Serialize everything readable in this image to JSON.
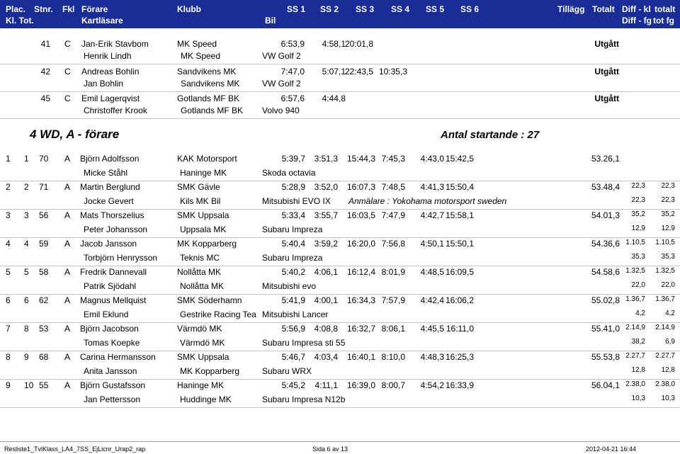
{
  "header": {
    "row1": [
      "Plac.",
      "Stnr.",
      "Fkl",
      "Förare",
      "Klubb",
      "SS 1",
      "SS 2",
      "SS 3",
      "SS 4",
      "SS 5",
      "SS 6",
      "Tillägg",
      "Totalt",
      "Diff - kl",
      "totalt"
    ],
    "row2": [
      "Kl. Tot.",
      "Kartläsare",
      "Bil",
      "Diff - fg",
      "tot fg"
    ]
  },
  "dnf": [
    {
      "nr": "41",
      "fkl": "C",
      "driver": "Jan-Erik Stavbom",
      "club": "MK Speed",
      "ss": [
        "6:53,9",
        "4:58,1",
        "20:01,8",
        "",
        ""
      ],
      "status": "Utgått",
      "codriver": "Henrik Lindh",
      "club2": "MK Speed",
      "car": "VW Golf 2"
    },
    {
      "nr": "42",
      "fkl": "C",
      "driver": "Andreas Bohlin",
      "club": "Sandvikens MK",
      "ss": [
        "7:47,0",
        "5:07,1",
        "22:43,5",
        "10:35,3",
        ""
      ],
      "status": "Utgått",
      "codriver": "Jan Bohlin",
      "club2": "Sandvikens MK",
      "car": "VW Golf 2"
    },
    {
      "nr": "45",
      "fkl": "C",
      "driver": "Emil Lagerqvist",
      "club": "Gotlands MF BK",
      "ss": [
        "6:57,6",
        "4:44,8",
        "",
        "",
        ""
      ],
      "status": "Utgått",
      "codriver": "Christoffer Krook",
      "club2": "Gotlands MF BK",
      "car": "Volvo 940"
    }
  ],
  "section": {
    "title": "4 WD, A - förare",
    "starters": "Antal startande : 27"
  },
  "results": [
    {
      "kl": "1",
      "tot": "1",
      "nr": "70",
      "fkl": "A",
      "driver": "Björn Adolfsson",
      "club": "KAK Motorsport",
      "ss": [
        "5:39,7",
        "3:51,3",
        "15:44,3",
        "7:45,3",
        "4:43,0",
        "15:42,5"
      ],
      "total": "53.26,1",
      "d1": "",
      "d2": "",
      "codriver": "Micke Ståhl",
      "club2": "Haninge MK",
      "car": "Skoda octavia",
      "note": "",
      "e1": "",
      "e2": ""
    },
    {
      "kl": "2",
      "tot": "2",
      "nr": "71",
      "fkl": "A",
      "driver": "Martin Berglund",
      "club": "SMK Gävle",
      "ss": [
        "5:28,9",
        "3:52,0",
        "16:07,3",
        "7:48,5",
        "4:41,3",
        "15:50,4"
      ],
      "total": "53.48,4",
      "d1": "22,3",
      "d2": "22,3",
      "codriver": "Jocke Gevert",
      "club2": "Kils MK Bil",
      "car": "Mitsubishi EVO IX",
      "note": "Anmälare :  Yokohama motorsport sweden",
      "e1": "22,3",
      "e2": "22,3"
    },
    {
      "kl": "3",
      "tot": "3",
      "nr": "56",
      "fkl": "A",
      "driver": "Mats Thorszelius",
      "club": "SMK Uppsala",
      "ss": [
        "5:33,4",
        "3:55,7",
        "16:03,5",
        "7:47,9",
        "4:42,7",
        "15:58,1"
      ],
      "total": "54.01,3",
      "d1": "35,2",
      "d2": "35,2",
      "codriver": "Peter Johansson",
      "club2": "Uppsala MK",
      "car": "Subaru Impreza",
      "note": "",
      "e1": "12,9",
      "e2": "12,9"
    },
    {
      "kl": "4",
      "tot": "4",
      "nr": "59",
      "fkl": "A",
      "driver": "Jacob Jansson",
      "club": "MK Kopparberg",
      "ss": [
        "5:40,4",
        "3:59,2",
        "16:20,0",
        "7:56,8",
        "4:50,1",
        "15:50,1"
      ],
      "total": "54.36,6",
      "d1": "1.10,5",
      "d2": "1.10,5",
      "codriver": "Torbjörn Henrysson",
      "club2": "Teknis MC",
      "car": "Subaru Impreza",
      "note": "",
      "e1": "35,3",
      "e2": "35,3"
    },
    {
      "kl": "5",
      "tot": "5",
      "nr": "58",
      "fkl": "A",
      "driver": "Fredrik Dannevall",
      "club": "Nollåtta MK",
      "ss": [
        "5:40,2",
        "4:06,1",
        "16:12,4",
        "8:01,9",
        "4:48,5",
        "16:09,5"
      ],
      "total": "54.58,6",
      "d1": "1.32,5",
      "d2": "1.32,5",
      "codriver": "Patrik Sjödahl",
      "club2": "Nollåtta MK",
      "car": "Mitsubishi evo",
      "note": "",
      "e1": "22,0",
      "e2": "22,0"
    },
    {
      "kl": "6",
      "tot": "6",
      "nr": "62",
      "fkl": "A",
      "driver": "Magnus Mellquist",
      "club": "SMK Söderhamn",
      "ss": [
        "5:41,9",
        "4:00,1",
        "16:34,3",
        "7:57,9",
        "4:42,4",
        "16:06,2"
      ],
      "total": "55.02,8",
      "d1": "1.36,7",
      "d2": "1.36,7",
      "codriver": "Emil Eklund",
      "club2": "Gestrike Racing Tea",
      "car": "Mitsubishi Lancer",
      "note": "",
      "e1": "4,2",
      "e2": "4,2"
    },
    {
      "kl": "7",
      "tot": "8",
      "nr": "53",
      "fkl": "A",
      "driver": "Björn Jacobson",
      "club": "Värmdö MK",
      "ss": [
        "5:56,9",
        "4:08,8",
        "16:32,7",
        "8:06,1",
        "4:45,5",
        "16:11,0"
      ],
      "total": "55.41,0",
      "d1": "2.14,9",
      "d2": "2.14,9",
      "codriver": "Tomas Koepke",
      "club2": "Värmdö MK",
      "car": "Subaru Impresa sti 55",
      "note": "",
      "e1": "38,2",
      "e2": "6,9"
    },
    {
      "kl": "8",
      "tot": "9",
      "nr": "68",
      "fkl": "A",
      "driver": "Carina Hermansson",
      "club": "SMK Uppsala",
      "ss": [
        "5:46,7",
        "4:03,4",
        "16:40,1",
        "8:10,0",
        "4:48,3",
        "16:25,3"
      ],
      "total": "55.53,8",
      "d1": "2.27,7",
      "d2": "2.27,7",
      "codriver": "Anita Jansson",
      "club2": "MK Kopparberg",
      "car": "Subaru WRX",
      "note": "",
      "e1": "12,8",
      "e2": "12,8"
    },
    {
      "kl": "9",
      "tot": "10",
      "nr": "55",
      "fkl": "A",
      "driver": "Björn Gustafsson",
      "club": "Haninge MK",
      "ss": [
        "5:45,2",
        "4:11,1",
        "16:39,0",
        "8:00,7",
        "4:54,2",
        "16:33,9"
      ],
      "total": "56.04,1",
      "d1": "2.38,0",
      "d2": "2.38,0",
      "codriver": "Jan Pettersson",
      "club2": "Huddinge MK",
      "car": "Subaru Impresa N12b",
      "note": "",
      "e1": "10,3",
      "e2": "10,3"
    }
  ],
  "footer": {
    "left": "Resliste1_TvlKlass_LA4_7SS_EjLicnr_Urap2_rap",
    "center": "Sida 6 av 13",
    "right": "2012-04-21 16:44"
  }
}
